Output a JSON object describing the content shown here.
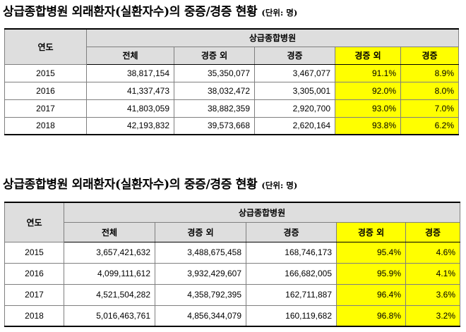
{
  "tables": [
    {
      "title": "상급종합병원 외래환자(실환자수)의 중증/경증 현황",
      "unit": "(단위: 명)",
      "year_header": "연도",
      "group_header": "상급종합병원",
      "columns": [
        "전체",
        "경증 외",
        "경증",
        "경증 외",
        "경증"
      ],
      "rows": [
        {
          "year": "2015",
          "total": "38,817,154",
          "non_mild": "35,350,077",
          "mild": "3,467,077",
          "non_mild_pct": "91.1%",
          "mild_pct": "8.9%"
        },
        {
          "year": "2016",
          "total": "41,337,473",
          "non_mild": "38,032,472",
          "mild": "3,305,001",
          "non_mild_pct": "92.0%",
          "mild_pct": "8.0%"
        },
        {
          "year": "2017",
          "total": "41,803,059",
          "non_mild": "38,882,359",
          "mild": "2,920,700",
          "non_mild_pct": "93.0%",
          "mild_pct": "7.0%"
        },
        {
          "year": "2018",
          "total": "42,193,832",
          "non_mild": "39,573,668",
          "mild": "2,620,164",
          "non_mild_pct": "93.8%",
          "mild_pct": "6.2%"
        }
      ]
    },
    {
      "title": "상급종합병원 외래환자(실환자수)의 중증/경증 현황",
      "unit": "(단위: 명)",
      "year_header": "연도",
      "group_header": "상급종합병원",
      "columns": [
        "전체",
        "경증 외",
        "경증",
        "경증 외",
        "경증"
      ],
      "rows": [
        {
          "year": "2015",
          "total": "3,657,421,632",
          "non_mild": "3,488,675,458",
          "mild": "168,746,173",
          "non_mild_pct": "95.4%",
          "mild_pct": "4.6%"
        },
        {
          "year": "2016",
          "total": "4,099,111,612",
          "non_mild": "3,932,429,607",
          "mild": "166,682,005",
          "non_mild_pct": "95.9%",
          "mild_pct": "4.1%"
        },
        {
          "year": "2017",
          "total": "4,521,504,282",
          "non_mild": "4,358,792,395",
          "mild": "162,711,887",
          "non_mild_pct": "96.4%",
          "mild_pct": "3.6%"
        },
        {
          "year": "2018",
          "total": "5,016,463,761",
          "non_mild": "4,856,344,079",
          "mild": "160,119,682",
          "non_mild_pct": "96.8%",
          "mild_pct": "3.2%"
        }
      ]
    }
  ]
}
